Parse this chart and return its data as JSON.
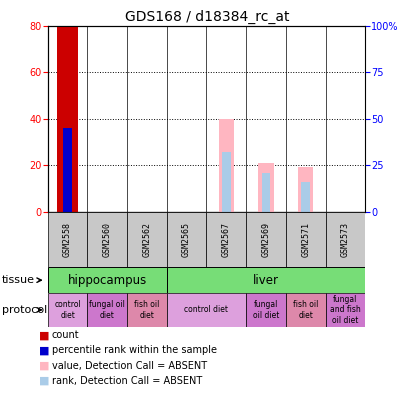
{
  "title": "GDS168 / d18384_rc_at",
  "samples": [
    "GSM2558",
    "GSM2560",
    "GSM2562",
    "GSM2565",
    "GSM2567",
    "GSM2569",
    "GSM2571",
    "GSM2573"
  ],
  "count_values": [
    80,
    0,
    0,
    0,
    0,
    0,
    0,
    0
  ],
  "rank_values": [
    45,
    0,
    0,
    0,
    0,
    0,
    0,
    0
  ],
  "absent_value_bars": [
    0,
    0,
    0,
    0,
    50,
    26,
    24,
    0
  ],
  "absent_rank_bars": [
    0,
    0,
    0,
    0,
    32,
    21,
    16,
    0
  ],
  "ylim_left": [
    0,
    80
  ],
  "ylim_right": [
    0,
    100
  ],
  "yticks_left": [
    0,
    20,
    40,
    60,
    80
  ],
  "yticks_right": [
    0,
    25,
    50,
    75,
    100
  ],
  "ytick_labels_right": [
    "0",
    "25",
    "50",
    "75",
    "100%"
  ],
  "bar_color_count": "#cc0000",
  "bar_color_rank": "#0000cc",
  "bar_color_absent_value": "#FFB6C1",
  "bar_color_absent_rank": "#AACCE8",
  "tissue_color": "#77DD77",
  "sample_bg_color": "#C8C8C8",
  "proto_colors": [
    "#DDA0DD",
    "#CC77CC",
    "#DD88AA",
    "#DDA0DD",
    "#CC77CC",
    "#DD88AA",
    "#CC77CC"
  ],
  "legend_items": [
    {
      "label": "count",
      "color": "#cc0000",
      "marker": "s"
    },
    {
      "label": "percentile rank within the sample",
      "color": "#0000cc",
      "marker": "s"
    },
    {
      "label": "value, Detection Call = ABSENT",
      "color": "#FFB6C1",
      "marker": "s"
    },
    {
      "label": "rank, Detection Call = ABSENT",
      "color": "#AACCE8",
      "marker": "s"
    }
  ],
  "title_fontsize": 10,
  "tick_fontsize": 7,
  "sample_fontsize": 6,
  "annotation_fontsize": 7.5
}
